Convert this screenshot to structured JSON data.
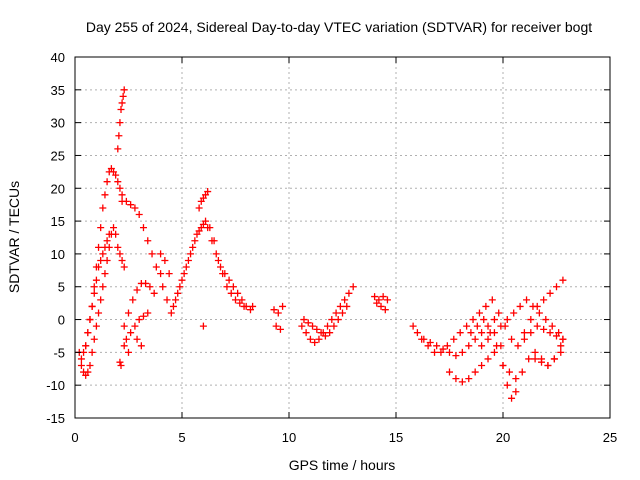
{
  "chart_data": {
    "type": "scatter",
    "title": "Day 255 of 2024, Sidereal Day-to-day VTEC variation (SDTVAR) for receiver bogt",
    "xlabel": "GPS time / hours",
    "ylabel": "SDTVAR / TECUs",
    "xlim": [
      0,
      25
    ],
    "ylim": [
      -15,
      40
    ],
    "xticks": [
      0,
      5,
      10,
      15,
      20,
      25
    ],
    "yticks": [
      -15,
      -10,
      -5,
      0,
      5,
      10,
      15,
      20,
      25,
      30,
      35,
      40
    ],
    "grid": true,
    "marker": "+",
    "marker_color": "#ff0000",
    "series": [
      {
        "name": "SDTVAR",
        "x": [
          0.2,
          0.3,
          0.4,
          0.5,
          0.6,
          0.7,
          0.8,
          0.9,
          1.0,
          1.1,
          1.2,
          1.3,
          1.4,
          1.5,
          1.6,
          1.7,
          1.8,
          1.9,
          2.0,
          2.1,
          2.2,
          2.3,
          0.5,
          0.6,
          0.7,
          0.8,
          0.9,
          1.0,
          1.1,
          1.2,
          1.3,
          1.4,
          1.5,
          1.6,
          1.7,
          1.8,
          1.9,
          2.0,
          2.1,
          2.2,
          0.3,
          0.4,
          0.5,
          0.6,
          0.7,
          0.8,
          0.9,
          1.0,
          1.1,
          1.2,
          1.3,
          1.4,
          1.5,
          1.6,
          2.0,
          2.05,
          2.1,
          2.15,
          2.2,
          2.25,
          2.3,
          2.1,
          2.15,
          2.2,
          2.4,
          2.6,
          2.8,
          3.0,
          3.2,
          3.4,
          3.6,
          3.8,
          4.0,
          2.3,
          2.5,
          2.7,
          2.9,
          3.1,
          3.3,
          3.5,
          3.7,
          2.4,
          2.6,
          2.8,
          3.0,
          3.2,
          3.4,
          2.3,
          2.5,
          2.9,
          3.1,
          4.0,
          4.2,
          4.4,
          4.1,
          4.3,
          4.6,
          4.8,
          5.0,
          5.2,
          5.4,
          5.6,
          5.8,
          6.0,
          6.2,
          6.4,
          6.6,
          6.8,
          7.0,
          7.2,
          7.4,
          7.6,
          7.8,
          8.0,
          8.3,
          4.5,
          4.7,
          4.9,
          5.1,
          5.3,
          5.5,
          5.7,
          5.9,
          6.1,
          6.3,
          6.5,
          6.7,
          6.9,
          7.1,
          7.3,
          7.5,
          7.7,
          7.9,
          8.2,
          5.8,
          5.9,
          6.0,
          6.1,
          6.2,
          6.0,
          9.3,
          9.5,
          9.7,
          9.4,
          9.6,
          10.6,
          10.8,
          11.0,
          11.2,
          11.4,
          11.6,
          11.8,
          12.0,
          12.2,
          12.4,
          12.6,
          12.8,
          13.0,
          10.7,
          10.9,
          11.1,
          11.3,
          11.5,
          11.7,
          11.9,
          12.1,
          12.3,
          12.5,
          12.7,
          14.0,
          14.2,
          14.4,
          14.6,
          14.1,
          14.3,
          14.5,
          15.8,
          16.0,
          16.2,
          16.5,
          16.8,
          17.1,
          17.4,
          17.7,
          18.0,
          18.3,
          18.6,
          18.9,
          19.2,
          19.5,
          19.8,
          20.1,
          20.4,
          20.7,
          21.0,
          21.3,
          21.6,
          21.9,
          22.2,
          22.5,
          22.8,
          16.3,
          16.6,
          16.9,
          17.2,
          17.5,
          17.8,
          18.1,
          18.4,
          18.7,
          19.0,
          19.3,
          19.6,
          17.5,
          17.8,
          18.1,
          18.4,
          18.7,
          19.0,
          19.3,
          19.6,
          19.9,
          18.5,
          18.8,
          19.1,
          19.4,
          19.7,
          20.0,
          20.2,
          20.4,
          20.6,
          19.0,
          19.3,
          19.6,
          19.9,
          20.2,
          20.5,
          20.8,
          21.1,
          21.4,
          21.7,
          22.0,
          22.3,
          22.6,
          22.8,
          20.0,
          20.3,
          20.6,
          20.9,
          21.2,
          21.5,
          21.8,
          22.1,
          22.4,
          22.7,
          21.0,
          21.3,
          21.6,
          21.9,
          22.2,
          22.5,
          22.8,
          21.5,
          21.8,
          22.1,
          22.4,
          22.7
        ],
        "y": [
          -5,
          -7,
          -8,
          -8.5,
          -8,
          -7,
          -5,
          -3,
          -1,
          1,
          3,
          5,
          7,
          9,
          11,
          13,
          14,
          13,
          11,
          10,
          9,
          8,
          -4,
          -2,
          0,
          2,
          5,
          8,
          11,
          14,
          17,
          19,
          21,
          22.5,
          23,
          22.5,
          22,
          21,
          20,
          19,
          -6,
          -5,
          -4,
          -2,
          0,
          2,
          4,
          6,
          8,
          9,
          10,
          11,
          12,
          13,
          26,
          28,
          30,
          32,
          33,
          34,
          35,
          -6.5,
          -7,
          18,
          18,
          17.5,
          17,
          16,
          14,
          12,
          10,
          8,
          7,
          -1,
          1,
          3,
          4.5,
          5.5,
          5.5,
          5,
          4,
          -3,
          -2,
          -1,
          0,
          0.5,
          1,
          -4,
          -5,
          -3,
          -4,
          10,
          9,
          7,
          5,
          3,
          2,
          4,
          6,
          8,
          10,
          12,
          13.5,
          14.5,
          14,
          12,
          10,
          8,
          7,
          6,
          5,
          4,
          3,
          2,
          2,
          1,
          3,
          5,
          7,
          9,
          11,
          13,
          14,
          15,
          14,
          12,
          9,
          7,
          5,
          4,
          3,
          2.5,
          2,
          1.5,
          17,
          18,
          18.5,
          19,
          19.5,
          -1,
          1.5,
          1,
          2,
          -1,
          -1.5,
          -1,
          -2,
          -3,
          -3.5,
          -3,
          -2,
          -1,
          0,
          1,
          2,
          3,
          4,
          5,
          0,
          -0.5,
          -1,
          -1.5,
          -2,
          -2.5,
          -2,
          -1,
          0,
          1,
          2,
          3.5,
          3,
          3.5,
          3,
          2.5,
          2,
          1.5,
          -1,
          -2,
          -3,
          -4,
          -5,
          -5,
          -4,
          -3,
          -2,
          -1,
          0,
          1,
          2,
          3,
          1,
          -1,
          -3,
          -4,
          -2,
          0,
          2,
          3,
          4,
          5,
          6,
          -3,
          -3.5,
          -4,
          -4.5,
          -5,
          -5.5,
          -5,
          -4,
          -3,
          -2,
          -1,
          0,
          -8,
          -9,
          -9.5,
          -9,
          -8,
          -7,
          -6,
          -5,
          -4,
          -2,
          -1,
          0,
          -2,
          -4,
          -7,
          -10,
          -12,
          -11,
          -4,
          -3,
          -2,
          -1,
          0,
          1,
          2,
          3,
          2,
          1,
          0,
          -1,
          -2,
          -3,
          -7,
          -8,
          -9,
          -8,
          -6,
          -5,
          -6,
          -7,
          -6,
          -4,
          -3,
          -2,
          -1,
          -1.5,
          -2,
          -2.5,
          -3,
          -6,
          -6.5,
          -7,
          -6,
          -5
        ]
      }
    ]
  }
}
